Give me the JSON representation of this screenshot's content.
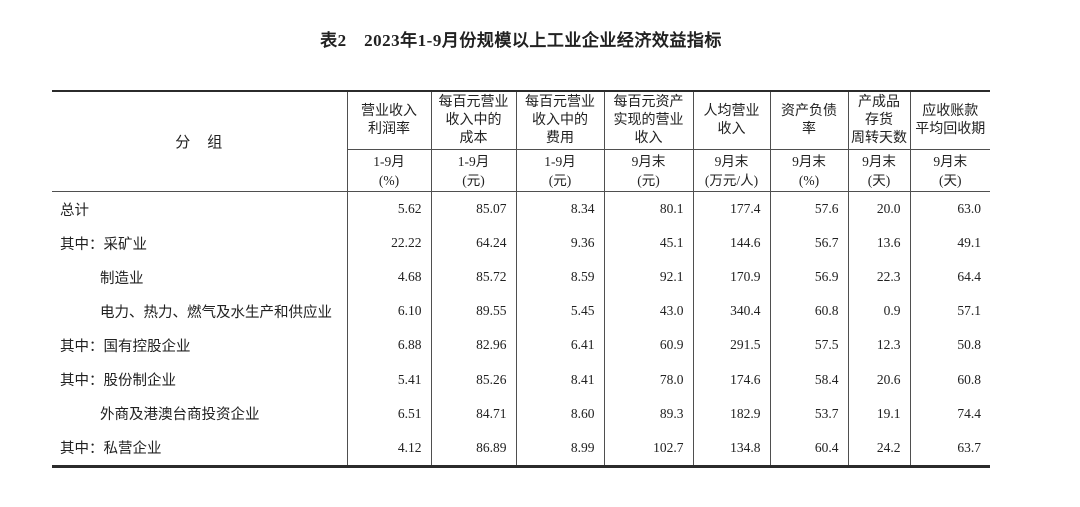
{
  "title": "表2　2023年1-9月份规模以上工业企业经济效益指标",
  "table": {
    "group_header": "分　组",
    "columns": [
      {
        "name_lines": [
          "营业收入",
          "利润率"
        ],
        "period": "1-9月",
        "unit": "(%)"
      },
      {
        "name_lines": [
          "每百元营业",
          "收入中的",
          "成本"
        ],
        "period": "1-9月",
        "unit": "(元)"
      },
      {
        "name_lines": [
          "每百元营业",
          "收入中的",
          "费用"
        ],
        "period": "1-9月",
        "unit": "(元)"
      },
      {
        "name_lines": [
          "每百元资产",
          "实现的营业",
          "收入"
        ],
        "period": "9月末",
        "unit": "(元)"
      },
      {
        "name_lines": [
          "人均营业",
          "收入"
        ],
        "period": "9月末",
        "unit": "(万元/人)"
      },
      {
        "name_lines": [
          "资产负债",
          "率"
        ],
        "period": "9月末",
        "unit": "(%)"
      },
      {
        "name_lines": [
          "产成品",
          "存货",
          "周转天数"
        ],
        "period": "9月末",
        "unit": "(天)"
      },
      {
        "name_lines": [
          "应收账款",
          "平均回收期"
        ],
        "period": "9月末",
        "unit": "(天)"
      }
    ],
    "rows": [
      {
        "label": "总计",
        "indent": false,
        "values": [
          "5.62",
          "85.07",
          "8.34",
          "80.1",
          "177.4",
          "57.6",
          "20.0",
          "63.0"
        ]
      },
      {
        "label": "其中：采矿业",
        "indent": false,
        "values": [
          "22.22",
          "64.24",
          "9.36",
          "45.1",
          "144.6",
          "56.7",
          "13.6",
          "49.1"
        ]
      },
      {
        "label": "制造业",
        "indent": true,
        "values": [
          "4.68",
          "85.72",
          "8.59",
          "92.1",
          "170.9",
          "56.9",
          "22.3",
          "64.4"
        ]
      },
      {
        "label": "电力、热力、燃气及水生产和供应业",
        "indent": true,
        "values": [
          "6.10",
          "89.55",
          "5.45",
          "43.0",
          "340.4",
          "60.8",
          "0.9",
          "57.1"
        ]
      },
      {
        "label": "其中：国有控股企业",
        "indent": false,
        "values": [
          "6.88",
          "82.96",
          "6.41",
          "60.9",
          "291.5",
          "57.5",
          "12.3",
          "50.8"
        ]
      },
      {
        "label": "其中：股份制企业",
        "indent": false,
        "values": [
          "5.41",
          "85.26",
          "8.41",
          "78.0",
          "174.6",
          "58.4",
          "20.6",
          "60.8"
        ]
      },
      {
        "label": "外商及港澳台商投资企业",
        "indent": true,
        "values": [
          "6.51",
          "84.71",
          "8.60",
          "89.3",
          "182.9",
          "53.7",
          "19.1",
          "74.4"
        ]
      },
      {
        "label": "其中：私营企业",
        "indent": false,
        "values": [
          "4.12",
          "86.89",
          "8.99",
          "102.7",
          "134.8",
          "60.4",
          "24.2",
          "63.7"
        ]
      }
    ],
    "colors": {
      "frame": "#2b2b2b",
      "grid": "#4f4f4f",
      "text": "#212121",
      "background": "#ffffff"
    }
  }
}
